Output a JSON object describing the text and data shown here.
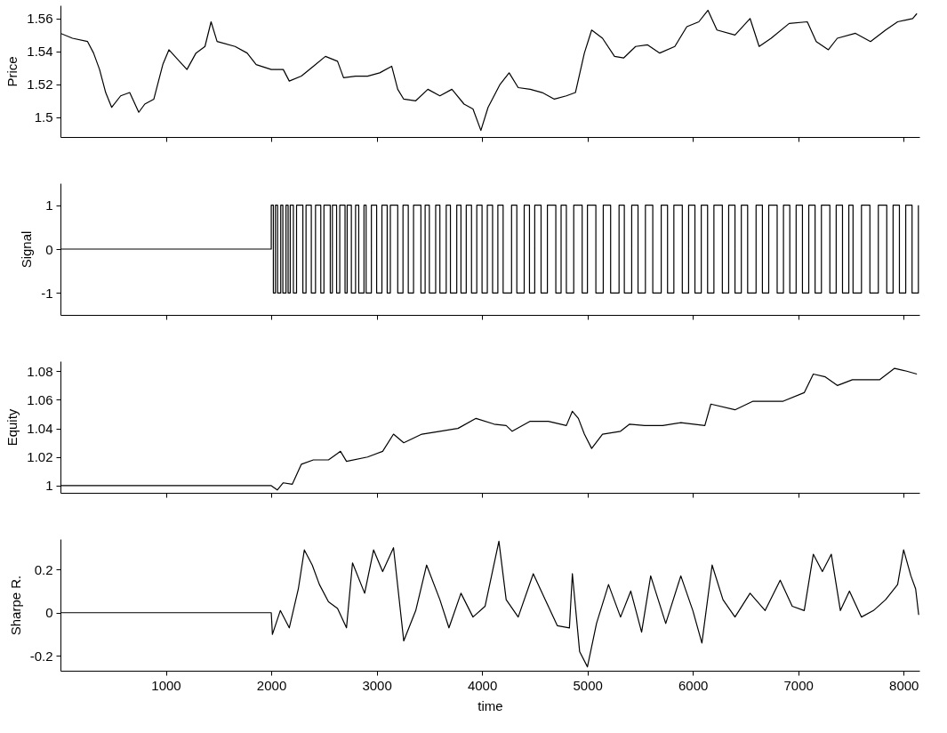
{
  "chart_data": [
    {
      "type": "line",
      "ylabel": "Price",
      "xlim": [
        0,
        8150
      ],
      "xticks": [
        1000,
        2000,
        3000,
        4000,
        5000,
        6000,
        7000,
        8000
      ],
      "ylim": [
        1.488,
        1.568
      ],
      "yticks": [
        1.5,
        1.52,
        1.54,
        1.56
      ],
      "tick_labels": "y",
      "grid": false,
      "line_style": "solid",
      "series": [
        {
          "color": "#000000",
          "x": [
            0,
            114,
            257,
            314,
            371,
            429,
            486,
            571,
            657,
            743,
            800,
            886,
            971,
            1029,
            1086,
            1200,
            1286,
            1371,
            1429,
            1486,
            1657,
            1771,
            1857,
            2000,
            2114,
            2171,
            2286,
            2400,
            2514,
            2629,
            2686,
            2800,
            2914,
            3029,
            3143,
            3200,
            3257,
            3371,
            3486,
            3600,
            3714,
            3829,
            3914,
            3989,
            4057,
            4171,
            4257,
            4343,
            4457,
            4571,
            4686,
            4800,
            4886,
            4971,
            5040,
            5143,
            5257,
            5343,
            5457,
            5571,
            5686,
            5829,
            5943,
            6057,
            6143,
            6229,
            6400,
            6543,
            6629,
            6743,
            6914,
            7086,
            7171,
            7286,
            7371,
            7543,
            7686,
            7829,
            7943,
            8086,
            8126
          ],
          "values": [
            1.551,
            1.548,
            1.546,
            1.539,
            1.529,
            1.515,
            1.506,
            1.513,
            1.515,
            1.503,
            1.508,
            1.511,
            1.532,
            1.541,
            1.537,
            1.529,
            1.539,
            1.543,
            1.558,
            1.546,
            1.543,
            1.539,
            1.532,
            1.529,
            1.529,
            1.522,
            1.525,
            1.531,
            1.537,
            1.534,
            1.524,
            1.525,
            1.525,
            1.527,
            1.531,
            1.517,
            1.511,
            1.51,
            1.517,
            1.513,
            1.517,
            1.508,
            1.505,
            1.492,
            1.506,
            1.52,
            1.527,
            1.518,
            1.517,
            1.515,
            1.511,
            1.513,
            1.515,
            1.539,
            1.553,
            1.548,
            1.537,
            1.536,
            1.543,
            1.544,
            1.539,
            1.543,
            1.555,
            1.558,
            1.565,
            1.553,
            1.55,
            1.56,
            1.543,
            1.548,
            1.557,
            1.558,
            1.546,
            1.541,
            1.548,
            1.551,
            1.546,
            1.553,
            1.558,
            1.56,
            1.563
          ]
        }
      ]
    },
    {
      "type": "step",
      "ylabel": "Signal",
      "xlim": [
        0,
        8150
      ],
      "xticks": [
        1000,
        2000,
        3000,
        4000,
        5000,
        6000,
        7000,
        8000
      ],
      "ylim": [
        -1.5,
        1.5
      ],
      "yticks": [
        -1,
        0,
        1
      ],
      "tick_labels": "y",
      "grid": false,
      "line_style": "solid",
      "series": [
        {
          "color": "#000000",
          "x": [
            0,
            2000,
            2020,
            2040,
            2060,
            2090,
            2110,
            2140,
            2160,
            2180,
            2210,
            2240,
            2300,
            2330,
            2380,
            2420,
            2470,
            2500,
            2560,
            2580,
            2620,
            2650,
            2700,
            2720,
            2760,
            2800,
            2830,
            2880,
            2900,
            2950,
            3000,
            3050,
            3100,
            3130,
            3200,
            3250,
            3300,
            3350,
            3420,
            3460,
            3500,
            3560,
            3600,
            3660,
            3700,
            3760,
            3800,
            3850,
            3900,
            3950,
            4000,
            4050,
            4100,
            4150,
            4200,
            4280,
            4330,
            4400,
            4450,
            4500,
            4560,
            4620,
            4700,
            4750,
            4800,
            4870,
            4950,
            5000,
            5080,
            5150,
            5220,
            5300,
            5350,
            5420,
            5480,
            5550,
            5620,
            5700,
            5760,
            5820,
            5900,
            5960,
            6020,
            6080,
            6140,
            6200,
            6280,
            6340,
            6400,
            6460,
            6520,
            6600,
            6660,
            6720,
            6800,
            6860,
            6920,
            6980,
            7040,
            7100,
            7160,
            7220,
            7300,
            7360,
            7420,
            7480,
            7520,
            7600,
            7680,
            7760,
            7840,
            7900,
            7960,
            8020,
            8080,
            8140
          ],
          "values": [
            0,
            1,
            -1,
            1,
            -1,
            1,
            -1,
            1,
            -1,
            1,
            -1,
            1,
            -1,
            1,
            -1,
            1,
            -1,
            1,
            -1,
            1,
            -1,
            1,
            -1,
            1,
            -1,
            1,
            -1,
            1,
            -1,
            1,
            -1,
            1,
            -1,
            1,
            -1,
            1,
            -1,
            1,
            -1,
            1,
            -1,
            1,
            -1,
            1,
            -1,
            1,
            -1,
            1,
            -1,
            1,
            -1,
            1,
            -1,
            1,
            -1,
            1,
            -1,
            1,
            -1,
            1,
            -1,
            1,
            -1,
            1,
            -1,
            1,
            -1,
            1,
            -1,
            1,
            -1,
            1,
            -1,
            1,
            -1,
            1,
            -1,
            1,
            -1,
            1,
            -1,
            1,
            -1,
            1,
            -1,
            1,
            -1,
            1,
            -1,
            1,
            -1,
            1,
            -1,
            1,
            -1,
            1,
            -1,
            1,
            -1,
            1,
            -1,
            1,
            -1,
            1,
            -1,
            1,
            -1,
            1,
            -1,
            1,
            -1,
            1,
            -1,
            1,
            -1,
            1
          ]
        }
      ]
    },
    {
      "type": "line",
      "ylabel": "Equity",
      "xlim": [
        0,
        8150
      ],
      "xticks": [
        1000,
        2000,
        3000,
        4000,
        5000,
        6000,
        7000,
        8000
      ],
      "ylim": [
        0.995,
        1.087
      ],
      "yticks": [
        1,
        1.02,
        1.04,
        1.06,
        1.08
      ],
      "tick_labels": "y",
      "grid": false,
      "line_style": "solid",
      "series": [
        {
          "color": "#000000",
          "x": [
            0,
            2000,
            2057,
            2114,
            2200,
            2286,
            2400,
            2543,
            2657,
            2714,
            2914,
            3057,
            3160,
            3257,
            3429,
            3600,
            3771,
            3943,
            4114,
            4229,
            4286,
            4457,
            4629,
            4800,
            4857,
            4914,
            4971,
            5040,
            5143,
            5314,
            5400,
            5543,
            5714,
            5886,
            6114,
            6171,
            6400,
            6571,
            6686,
            6857,
            7057,
            7143,
            7257,
            7371,
            7514,
            7657,
            7771,
            7914,
            8029,
            8126
          ],
          "values": [
            1.0,
            1.0,
            0.997,
            1.002,
            1.001,
            1.015,
            1.018,
            1.018,
            1.024,
            1.017,
            1.02,
            1.024,
            1.036,
            1.03,
            1.036,
            1.038,
            1.04,
            1.047,
            1.043,
            1.042,
            1.038,
            1.045,
            1.045,
            1.042,
            1.052,
            1.047,
            1.036,
            1.026,
            1.036,
            1.038,
            1.043,
            1.042,
            1.042,
            1.044,
            1.042,
            1.057,
            1.053,
            1.059,
            1.059,
            1.059,
            1.065,
            1.078,
            1.076,
            1.07,
            1.074,
            1.074,
            1.074,
            1.082,
            1.08,
            1.078
          ]
        }
      ]
    },
    {
      "type": "line",
      "ylabel": "Sharpe R.",
      "xlabel": "time",
      "xlim": [
        0,
        8150
      ],
      "xticks": [
        1000,
        2000,
        3000,
        4000,
        5000,
        6000,
        7000,
        8000
      ],
      "ylim": [
        -0.268,
        0.34
      ],
      "yticks": [
        -0.2,
        0,
        0.2
      ],
      "grid": false,
      "line_style": "solid",
      "series": [
        {
          "color": "#000000",
          "x": [
            0,
            2000,
            2011,
            2086,
            2171,
            2257,
            2314,
            2389,
            2457,
            2543,
            2629,
            2714,
            2771,
            2886,
            2971,
            3057,
            3160,
            3257,
            3371,
            3474,
            3600,
            3686,
            3800,
            3914,
            4029,
            4160,
            4229,
            4343,
            4486,
            4600,
            4714,
            4829,
            4857,
            4926,
            5000,
            5086,
            5200,
            5314,
            5411,
            5514,
            5600,
            5743,
            5886,
            6000,
            6086,
            6183,
            6286,
            6400,
            6543,
            6686,
            6829,
            6943,
            7057,
            7143,
            7229,
            7314,
            7400,
            7486,
            7600,
            7714,
            7829,
            7943,
            8000,
            8069,
            8114,
            8143
          ],
          "values": [
            0,
            0,
            -0.1,
            0.01,
            -0.07,
            0.11,
            0.29,
            0.22,
            0.13,
            0.05,
            0.02,
            -0.07,
            0.23,
            0.09,
            0.29,
            0.19,
            0.3,
            -0.13,
            0.01,
            0.22,
            0.06,
            -0.07,
            0.09,
            -0.02,
            0.03,
            0.33,
            0.06,
            -0.02,
            0.18,
            0.06,
            -0.06,
            -0.07,
            0.18,
            -0.18,
            -0.25,
            -0.05,
            0.13,
            -0.02,
            0.1,
            -0.09,
            0.17,
            -0.05,
            0.17,
            0.01,
            -0.14,
            0.22,
            0.06,
            -0.02,
            0.09,
            0.01,
            0.15,
            0.03,
            0.01,
            0.27,
            0.19,
            0.27,
            0.01,
            0.1,
            -0.02,
            0.01,
            0.06,
            0.13,
            0.29,
            0.17,
            0.11,
            -0.01
          ]
        }
      ]
    }
  ]
}
